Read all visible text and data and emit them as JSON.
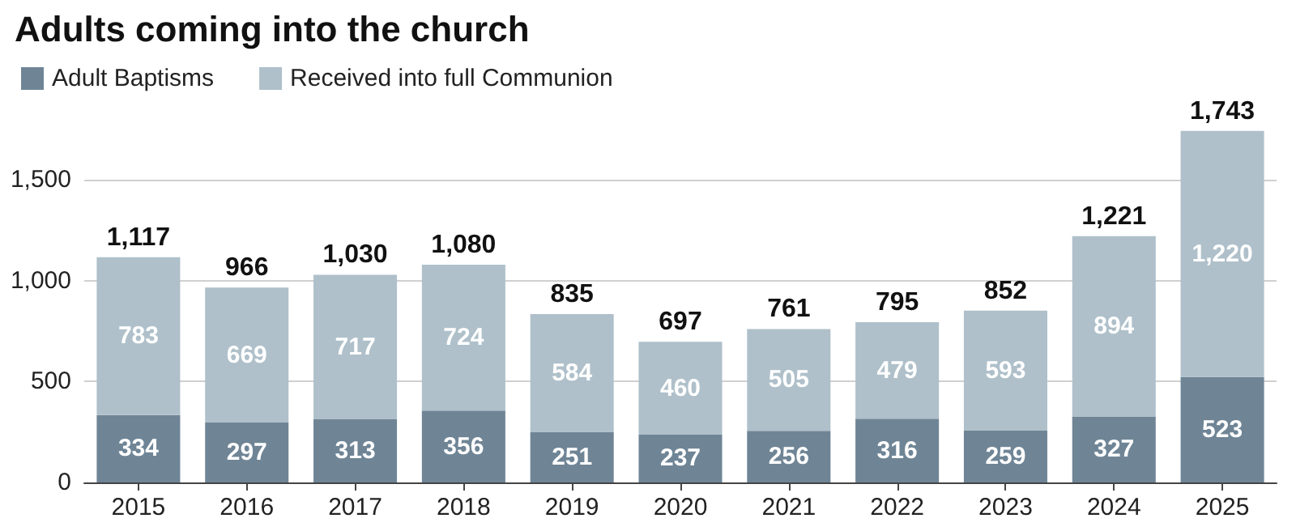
{
  "chart_data": {
    "type": "bar",
    "title": "Adults coming into the church",
    "stacked": true,
    "legend": "top left",
    "grid": "y",
    "categories": [
      "2015",
      "2016",
      "2017",
      "2018",
      "2019",
      "2020",
      "2021",
      "2022",
      "2023",
      "2024",
      "2025"
    ],
    "series": [
      {
        "name": "Adult Baptisms",
        "color": "#6f8596",
        "values": [
          334,
          297,
          313,
          356,
          251,
          237,
          256,
          316,
          259,
          327,
          523
        ],
        "value_labels": [
          "334",
          "297",
          "313",
          "356",
          "251",
          "237",
          "256",
          "316",
          "259",
          "327",
          "523"
        ]
      },
      {
        "name": "Received into full Communion",
        "color": "#afc0ca",
        "values": [
          783,
          669,
          717,
          724,
          584,
          460,
          505,
          479,
          593,
          894,
          1220
        ],
        "value_labels": [
          "783",
          "669",
          "717",
          "724",
          "584",
          "460",
          "505",
          "479",
          "593",
          "894",
          "1,220"
        ]
      }
    ],
    "totals": [
      "1,117",
      "966",
      "1,030",
      "1,080",
      "835",
      "697",
      "761",
      "795",
      "852",
      "1,221",
      "1,743"
    ],
    "ylim": [
      0,
      1750
    ],
    "yticks": [
      0,
      500,
      {
        "value": 1000,
        "label": "1,000"
      },
      {
        "value": 1500,
        "label": "1,500"
      }
    ]
  }
}
